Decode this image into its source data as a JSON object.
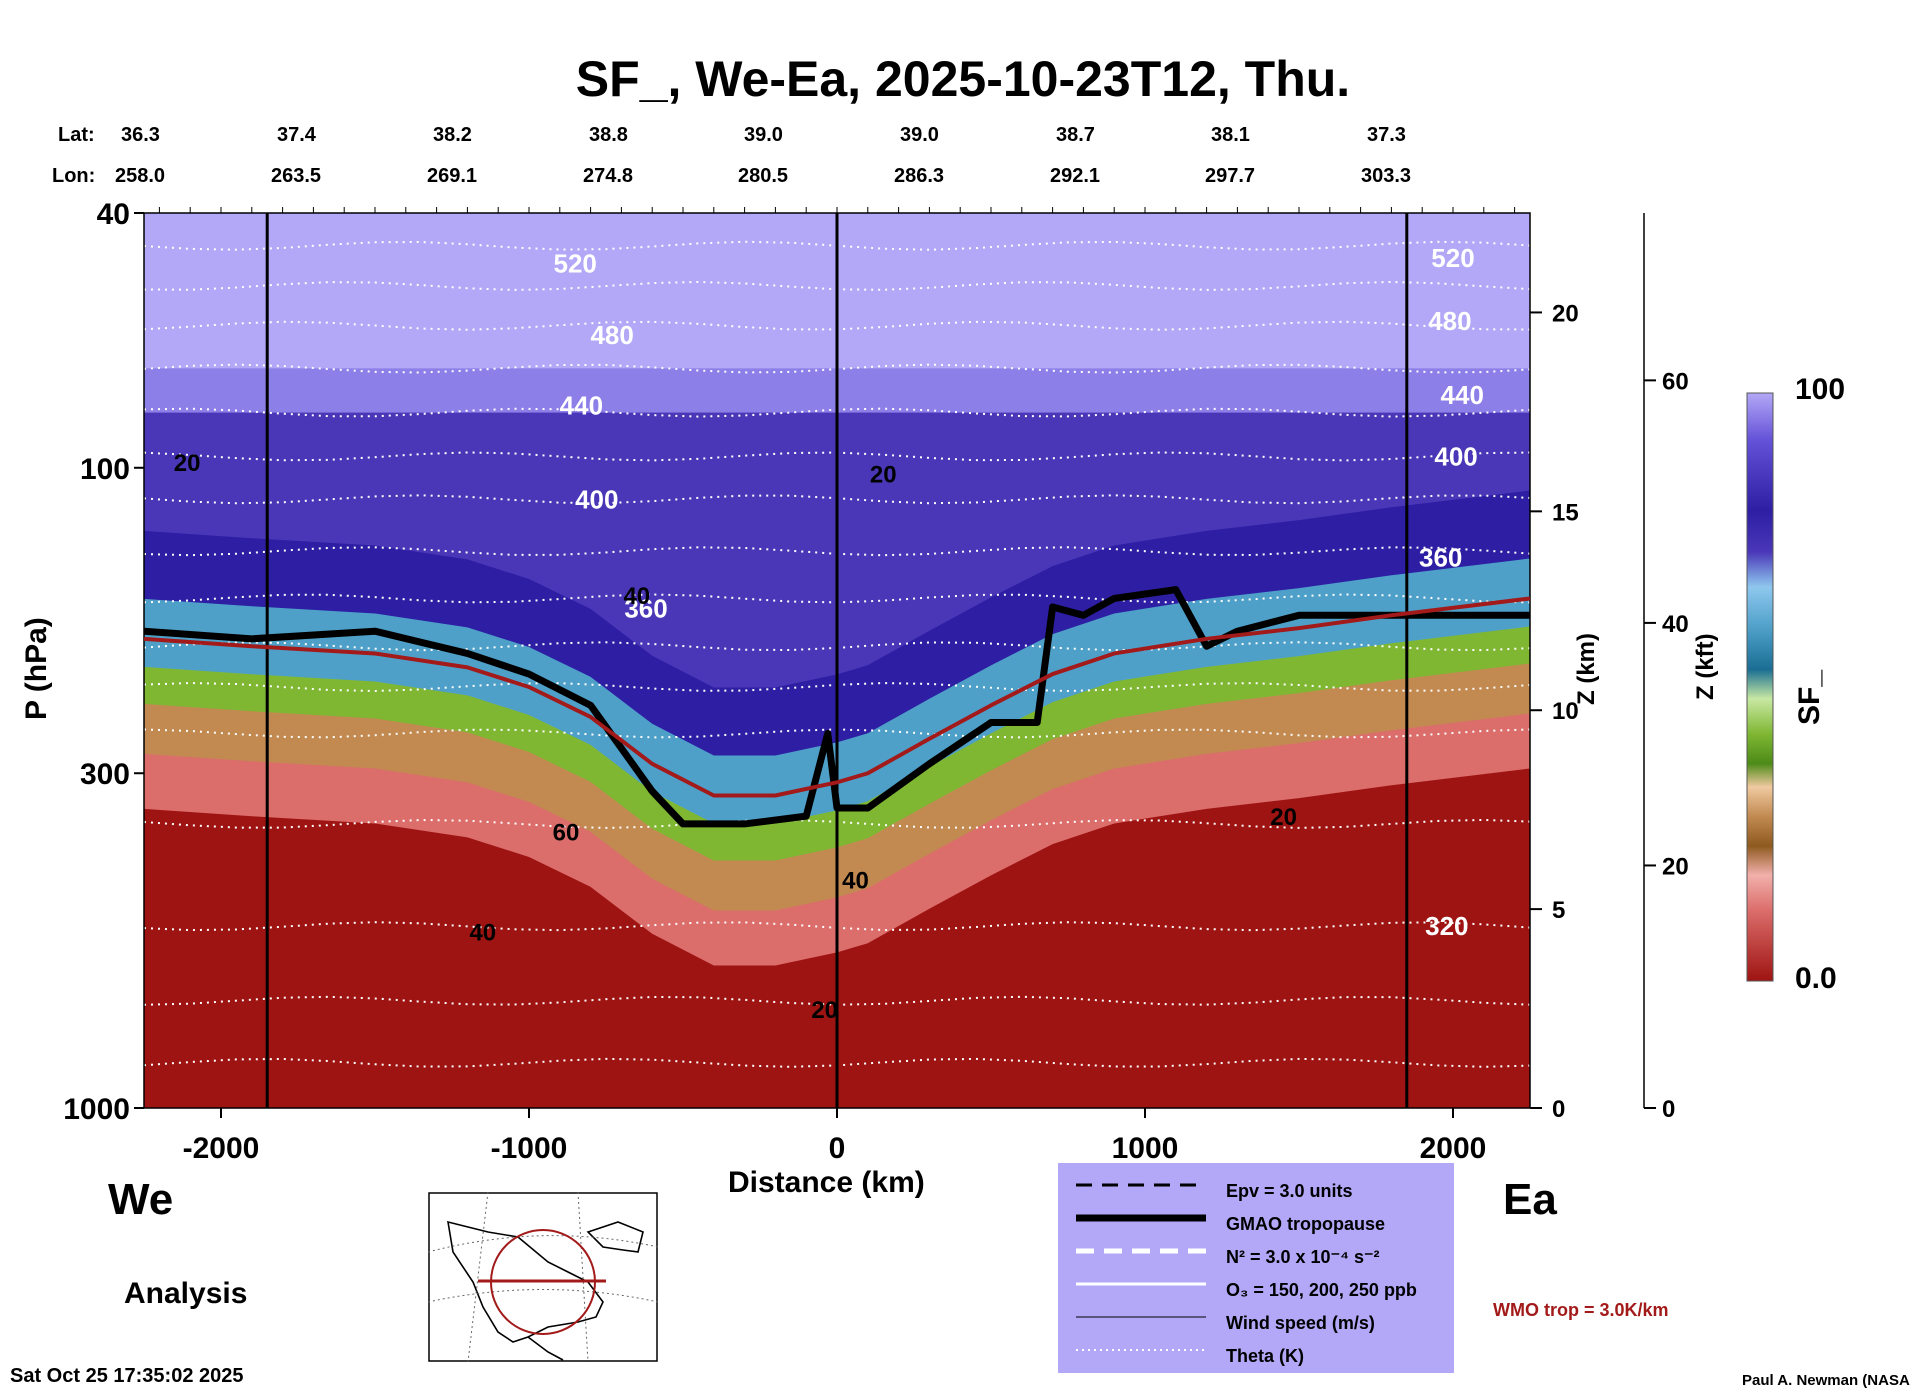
{
  "title": "SF_, We-Ea, 2025-10-23T12, Thu.",
  "lat_label": "Lat:",
  "lon_label": "Lon:",
  "lat_values": [
    "36.3",
    "37.4",
    "38.2",
    "38.8",
    "39.0",
    "39.0",
    "38.7",
    "38.1",
    "37.3"
  ],
  "lon_values": [
    "258.0",
    "263.5",
    "269.1",
    "274.8",
    "280.5",
    "286.3",
    "292.1",
    "297.7",
    "303.3"
  ],
  "left_label": "We",
  "right_label": "Ea",
  "analysis_label": "Analysis",
  "timestamp": "Sat Oct 25 17:35:02 2025",
  "credit": "Paul A. Newman (NASA",
  "wmo_label": "WMO trop = 3.0K/km",
  "colorbar": {
    "label": "SF_",
    "max": "100",
    "min": "0.0"
  },
  "legend": [
    {
      "label": "Epv = 3.0 units",
      "style": "dashed-black"
    },
    {
      "label": "GMAO tropopause",
      "style": "thick-black"
    },
    {
      "label": "N² = 3.0 x 10⁻⁴ s⁻²",
      "style": "dashed-white"
    },
    {
      "label": "O₃ = 150, 200, 250 ppb",
      "style": "solid-white"
    },
    {
      "label": "Wind speed (m/s)",
      "style": "thin-black"
    },
    {
      "label": "Theta (K)",
      "style": "dotted-white"
    }
  ],
  "chart_data": {
    "type": "heatmap",
    "title": "SF_, We-Ea, 2025-10-23T12, Thu.",
    "xlabel": "Distance (km)",
    "ylabel": "P (hPa)",
    "y2label": "Z (km)",
    "y3label": "Z (kft)",
    "xlim": [
      -2250,
      2250
    ],
    "ylim": [
      1000,
      40
    ],
    "yscale": "log",
    "x_ticks": [
      -2000,
      -1000,
      0,
      1000,
      2000
    ],
    "x_tick_labels": [
      "-2000",
      "-1000",
      "0",
      "1000",
      "2000"
    ],
    "p_ticks": [
      40,
      100,
      300,
      1000
    ],
    "p_tick_labels": [
      "40",
      "100",
      "300",
      "1000"
    ],
    "z_km_ticks": [
      0,
      5,
      10,
      15,
      20
    ],
    "z_km_tick_labels": [
      "0",
      "5",
      "10",
      "15",
      "20"
    ],
    "z_kft_ticks": [
      0,
      20,
      40,
      60
    ],
    "z_kft_tick_labels": [
      "0",
      "20",
      "40",
      "60"
    ],
    "vertical_markers_km": [
      -1850,
      0,
      1850
    ],
    "colorbar_range": [
      0.0,
      100
    ],
    "theta_labels": [
      {
        "text": "520",
        "x": -850,
        "p": 48
      },
      {
        "text": "480",
        "x": -730,
        "p": 62
      },
      {
        "text": "440",
        "x": -830,
        "p": 80
      },
      {
        "text": "400",
        "x": -780,
        "p": 112
      },
      {
        "text": "360",
        "x": -620,
        "p": 166
      },
      {
        "text": "520",
        "x": 2000,
        "p": 47
      },
      {
        "text": "480",
        "x": 1990,
        "p": 59
      },
      {
        "text": "440",
        "x": 2030,
        "p": 77
      },
      {
        "text": "400",
        "x": 2010,
        "p": 96
      },
      {
        "text": "360",
        "x": 1960,
        "p": 138
      },
      {
        "text": "320",
        "x": 1980,
        "p": 520
      }
    ],
    "wind_labels": [
      {
        "text": "20",
        "x": -2110,
        "p": 98
      },
      {
        "text": "20",
        "x": 150,
        "p": 102
      },
      {
        "text": "40",
        "x": -650,
        "p": 158
      },
      {
        "text": "60",
        "x": -880,
        "p": 370
      },
      {
        "text": "40",
        "x": -1150,
        "p": 530
      },
      {
        "text": "40",
        "x": 60,
        "p": 440
      },
      {
        "text": "20",
        "x": -40,
        "p": 700
      },
      {
        "text": "20",
        "x": 1450,
        "p": 350
      }
    ],
    "series": [
      {
        "name": "GMAO tropopause",
        "x": [
          -2250,
          -1900,
          -1500,
          -1200,
          -1000,
          -800,
          -600,
          -500,
          -300,
          -100,
          -30,
          0,
          100,
          300,
          500,
          650,
          700,
          800,
          900,
          1100,
          1200,
          1300,
          1500,
          1800,
          2250
        ],
        "p": [
          180,
          185,
          180,
          195,
          210,
          235,
          320,
          360,
          360,
          350,
          260,
          340,
          340,
          290,
          250,
          250,
          165,
          170,
          160,
          155,
          190,
          180,
          170,
          170,
          170
        ]
      },
      {
        "name": "WMO tropopause",
        "x": [
          -2250,
          -1900,
          -1500,
          -1200,
          -1000,
          -800,
          -600,
          -400,
          -200,
          0,
          100,
          300,
          500,
          700,
          900,
          1200,
          1500,
          1800,
          2250
        ],
        "p": [
          185,
          190,
          195,
          205,
          220,
          245,
          290,
          325,
          325,
          310,
          300,
          265,
          235,
          210,
          195,
          185,
          178,
          170,
          160
        ]
      }
    ],
    "colors": {
      "stratosphere": "#4a37b8",
      "troposphere": "#9e1412",
      "upper": "#b3a8f7",
      "tropopause_region": "#7fb733",
      "gmao": "#000000",
      "wmo": "#a31a1a"
    }
  }
}
